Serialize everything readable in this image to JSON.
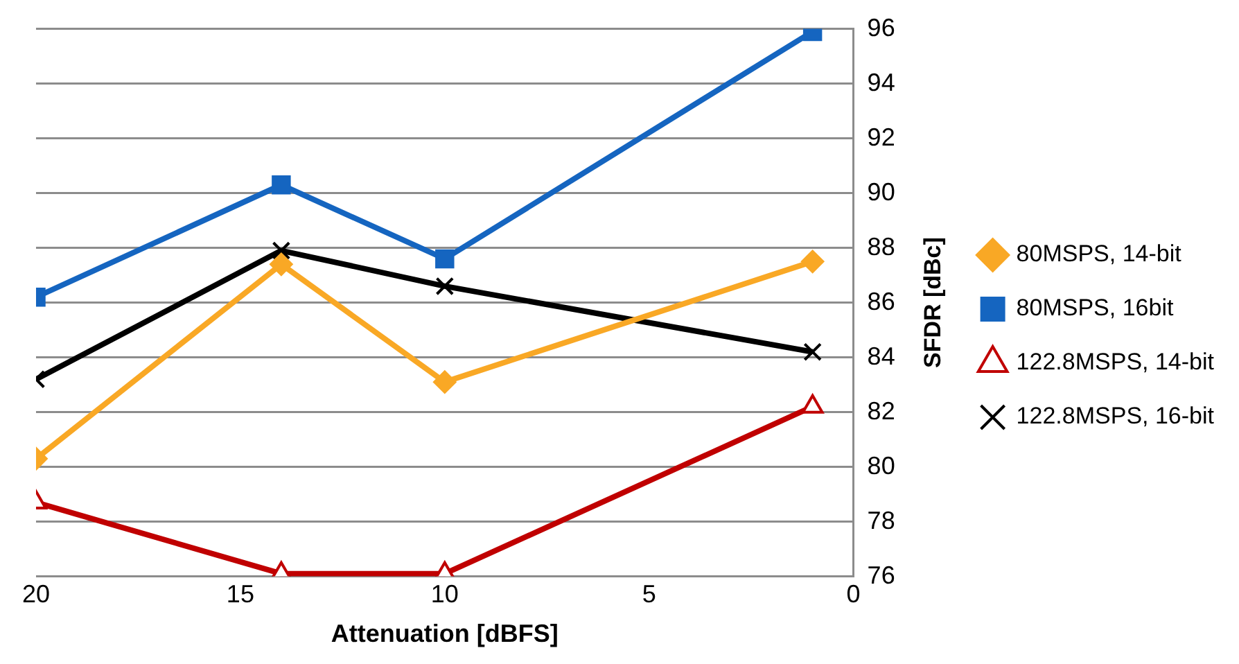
{
  "chart_data": {
    "type": "line",
    "xlabel": "Attenuation [dBFS]",
    "ylabel": "SFDR [dBc]",
    "x": [
      20,
      14,
      10,
      1
    ],
    "series": [
      {
        "name": "80MSPS, 14-bit",
        "color": "#f9a825",
        "marker": "diamond",
        "values": [
          80.3,
          87.4,
          83.1,
          87.5
        ]
      },
      {
        "name": "80MSPS, 16bit",
        "color": "#1565c0",
        "marker": "square",
        "values": [
          86.2,
          90.3,
          87.6,
          95.9
        ]
      },
      {
        "name": "122.8MSPS, 14-bit",
        "color": "#c00000",
        "marker": "triangle",
        "values": [
          78.7,
          76.1,
          76.1,
          82.2
        ]
      },
      {
        "name": "122.8MSPS, 16-bit",
        "color": "#000000",
        "marker": "cross",
        "values": [
          83.2,
          87.9,
          86.6,
          84.2
        ]
      }
    ],
    "xlim": [
      20,
      0
    ],
    "xticks": [
      20,
      15,
      10,
      5,
      0
    ],
    "ylim": [
      76,
      96
    ],
    "yticks": [
      76,
      78,
      80,
      82,
      84,
      86,
      88,
      90,
      92,
      94,
      96
    ],
    "grid": "y",
    "legend": "right"
  }
}
